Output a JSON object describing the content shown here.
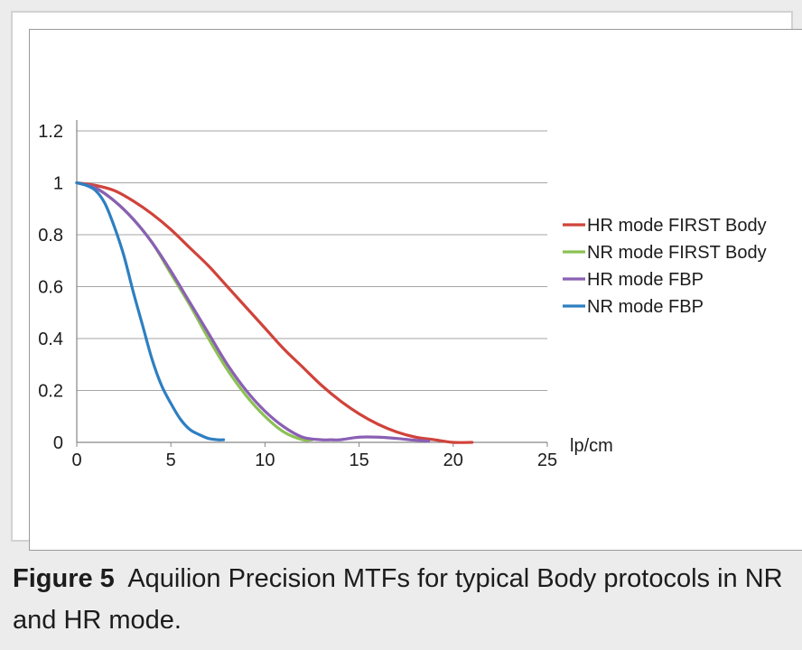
{
  "chart_data": {
    "type": "line",
    "xlabel": "lp/cm",
    "ylabel": "",
    "xlim": [
      0,
      25
    ],
    "ylim": [
      0,
      1.2
    ],
    "x_ticks": [
      "0",
      "5",
      "10",
      "15",
      "20",
      "25"
    ],
    "y_ticks": [
      "0",
      "0.2",
      "0.4",
      "0.6",
      "0.8",
      "1",
      "1.2"
    ],
    "grid": "horizontal",
    "legend_position": "right",
    "series": [
      {
        "name": "HR mode FIRST Body",
        "color": "#d0433b",
        "x": [
          0,
          1,
          2,
          3,
          4,
          5,
          6,
          7,
          8,
          9,
          10,
          11,
          12,
          13,
          14,
          15,
          16,
          17,
          18,
          19,
          20,
          21
        ],
        "y": [
          1.0,
          0.99,
          0.97,
          0.93,
          0.88,
          0.82,
          0.75,
          0.68,
          0.6,
          0.52,
          0.44,
          0.36,
          0.29,
          0.22,
          0.16,
          0.11,
          0.07,
          0.04,
          0.02,
          0.01,
          0.0,
          0.0
        ]
      },
      {
        "name": "NR mode FIRST Body",
        "color": "#8cc153",
        "x": [
          0,
          1,
          2,
          3,
          4,
          5,
          6,
          7,
          8,
          9,
          10,
          11,
          12,
          12.5
        ],
        "y": [
          1.0,
          0.98,
          0.93,
          0.86,
          0.77,
          0.65,
          0.53,
          0.4,
          0.28,
          0.18,
          0.1,
          0.04,
          0.01,
          0.01
        ]
      },
      {
        "name": "HR mode FBP",
        "color": "#8a5fb4",
        "x": [
          0,
          1,
          2,
          3,
          4,
          5,
          6,
          7,
          8,
          9,
          10,
          11,
          12,
          13,
          13.5,
          14,
          15,
          16,
          17,
          18,
          18.7
        ],
        "y": [
          1.0,
          0.98,
          0.93,
          0.86,
          0.77,
          0.66,
          0.54,
          0.42,
          0.3,
          0.2,
          0.12,
          0.06,
          0.02,
          0.01,
          0.01,
          0.01,
          0.02,
          0.02,
          0.015,
          0.008,
          0.005
        ]
      },
      {
        "name": "NR mode FBP",
        "color": "#2e7fc1",
        "x": [
          0,
          0.5,
          1,
          1.5,
          2,
          2.5,
          3,
          3.5,
          4,
          4.5,
          5,
          5.5,
          6,
          6.5,
          7,
          7.5,
          7.8
        ],
        "y": [
          1.0,
          0.99,
          0.97,
          0.92,
          0.83,
          0.72,
          0.58,
          0.45,
          0.32,
          0.22,
          0.15,
          0.09,
          0.05,
          0.03,
          0.015,
          0.01,
          0.01
        ]
      }
    ]
  },
  "caption": {
    "label": "Figure 5",
    "text": "Aquilion Precision MTFs for typical Body protocols in NR and HR mode."
  },
  "colors": {
    "grid": "#a6a6a6",
    "axis": "#868686",
    "text": "#1c1c1c"
  }
}
